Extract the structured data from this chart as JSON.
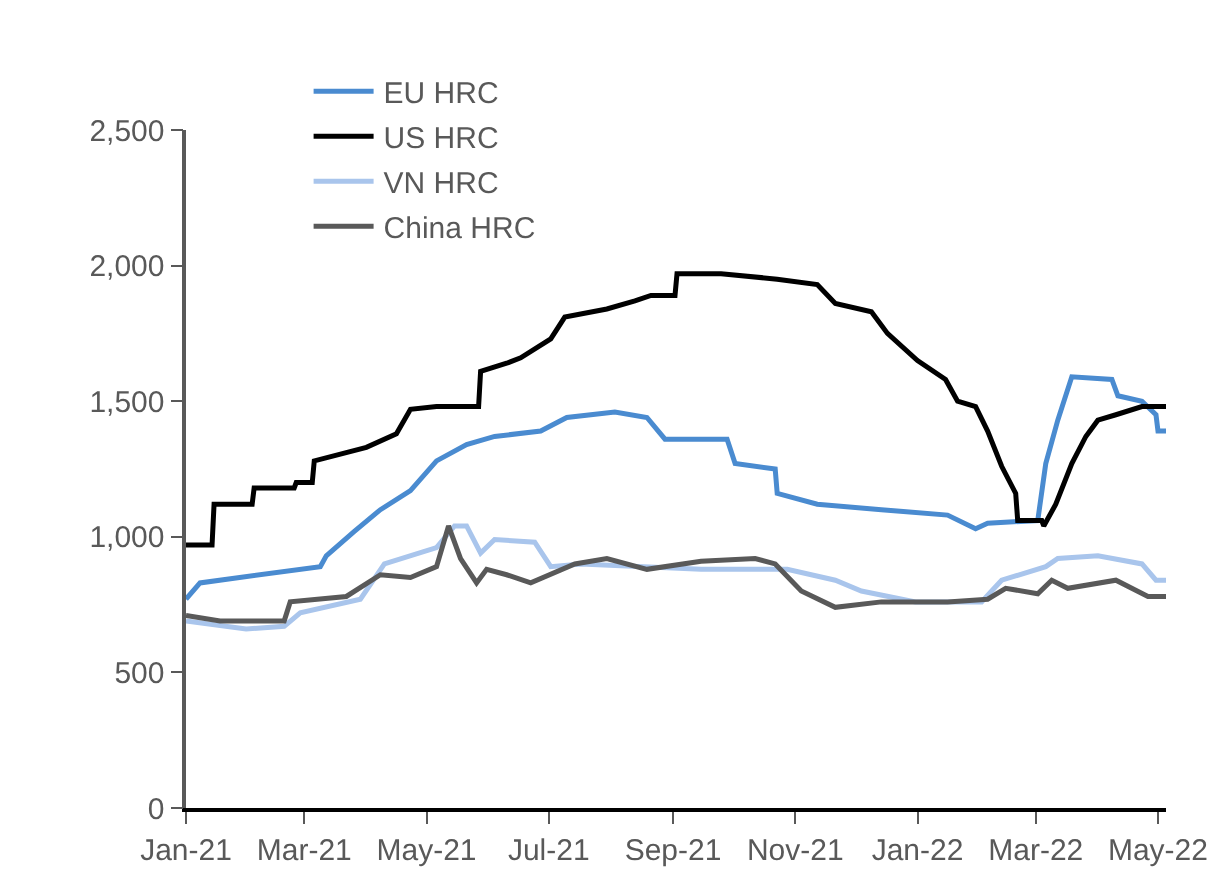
{
  "chart_data": {
    "type": "line",
    "legend": "top",
    "grid": false,
    "xlim": [
      "2021-01-01",
      "2022-05-05"
    ],
    "xticks": [
      {
        "value": "2021-01-01",
        "label": "Jan-21"
      },
      {
        "value": "2021-03-01",
        "label": "Mar-21"
      },
      {
        "value": "2021-05-01",
        "label": "May-21"
      },
      {
        "value": "2021-07-01",
        "label": "Jul-21"
      },
      {
        "value": "2021-09-01",
        "label": "Sep-21"
      },
      {
        "value": "2021-11-01",
        "label": "Nov-21"
      },
      {
        "value": "2022-01-01",
        "label": "Jan-22"
      },
      {
        "value": "2022-03-01",
        "label": "Mar-22"
      },
      {
        "value": "2022-05-01",
        "label": "May-22"
      }
    ],
    "ylim": [
      0,
      2500
    ],
    "yticks": [
      0,
      500,
      {
        "value": 1000,
        "label": "1,000"
      },
      {
        "value": 1500,
        "label": "1,500"
      },
      {
        "value": 2000,
        "label": "2,000"
      },
      {
        "value": 2500,
        "label": "2,500"
      }
    ],
    "series": [
      {
        "name": "EU HRC",
        "color": "#4a8bd0",
        "x": [
          "2021-01-01",
          "2021-01-08",
          "2021-03-09",
          "2021-03-12",
          "2021-03-26",
          "2021-04-08",
          "2021-04-23",
          "2021-05-06",
          "2021-05-21",
          "2021-06-04",
          "2021-06-27",
          "2021-07-10",
          "2021-08-03",
          "2021-08-19",
          "2021-08-28",
          "2021-09-28",
          "2021-10-02",
          "2021-10-22",
          "2021-10-23",
          "2021-11-12",
          "2021-12-14",
          "2022-01-16",
          "2022-01-30",
          "2022-02-05",
          "2022-03-02",
          "2022-03-06",
          "2022-03-12",
          "2022-03-19",
          "2022-04-08",
          "2022-04-11",
          "2022-04-23",
          "2022-04-30",
          "2022-05-01",
          "2022-05-05"
        ],
        "values": [
          770,
          830,
          890,
          930,
          1020,
          1100,
          1170,
          1280,
          1340,
          1370,
          1390,
          1440,
          1460,
          1440,
          1360,
          1360,
          1270,
          1250,
          1160,
          1120,
          1100,
          1080,
          1030,
          1050,
          1060,
          1270,
          1430,
          1590,
          1580,
          1520,
          1500,
          1450,
          1390,
          1390
        ]
      },
      {
        "name": "US HRC",
        "color": "#000000",
        "x": [
          "2021-01-01",
          "2021-01-14",
          "2021-01-15",
          "2021-02-03",
          "2021-02-04",
          "2021-02-24",
          "2021-02-25",
          "2021-03-05",
          "2021-03-06",
          "2021-04-01",
          "2021-04-16",
          "2021-04-23",
          "2021-05-06",
          "2021-05-27",
          "2021-05-28",
          "2021-06-10",
          "2021-06-17",
          "2021-07-02",
          "2021-07-09",
          "2021-07-30",
          "2021-08-13",
          "2021-08-21",
          "2021-09-02",
          "2021-09-03",
          "2021-09-25",
          "2021-10-23",
          "2021-11-12",
          "2021-11-21",
          "2021-12-09",
          "2021-12-17",
          "2022-01-01",
          "2022-01-15",
          "2022-01-21",
          "2022-01-30",
          "2022-02-05",
          "2022-02-12",
          "2022-02-19",
          "2022-02-20",
          "2022-03-04",
          "2022-03-05",
          "2022-03-11",
          "2022-03-19",
          "2022-03-26",
          "2022-04-01",
          "2022-04-10",
          "2022-04-23",
          "2022-05-05"
        ],
        "values": [
          970,
          970,
          1120,
          1120,
          1180,
          1180,
          1200,
          1200,
          1280,
          1330,
          1380,
          1470,
          1480,
          1480,
          1610,
          1640,
          1660,
          1730,
          1810,
          1840,
          1870,
          1890,
          1890,
          1970,
          1970,
          1950,
          1930,
          1860,
          1830,
          1750,
          1650,
          1580,
          1500,
          1480,
          1390,
          1260,
          1160,
          1060,
          1060,
          1040,
          1120,
          1270,
          1370,
          1430,
          1450,
          1480,
          1480
        ]
      },
      {
        "name": "VN HRC",
        "color": "#a9c5ec",
        "x": [
          "2021-01-01",
          "2021-01-31",
          "2021-02-19",
          "2021-02-27",
          "2021-03-29",
          "2021-04-10",
          "2021-05-06",
          "2021-05-15",
          "2021-05-21",
          "2021-05-28",
          "2021-06-04",
          "2021-06-24",
          "2021-07-02",
          "2021-07-17",
          "2021-09-15",
          "2021-10-28",
          "2021-11-21",
          "2021-12-04",
          "2021-12-31",
          "2022-02-02",
          "2022-02-07",
          "2022-02-12",
          "2022-03-06",
          "2022-03-12",
          "2022-04-01",
          "2022-04-23",
          "2022-04-30",
          "2022-05-05"
        ],
        "values": [
          690,
          660,
          670,
          720,
          770,
          900,
          960,
          1040,
          1040,
          940,
          990,
          980,
          890,
          900,
          880,
          880,
          840,
          800,
          760,
          760,
          800,
          840,
          890,
          920,
          930,
          900,
          840,
          840
        ]
      },
      {
        "name": "China HRC",
        "color": "#595959",
        "x": [
          "2021-01-01",
          "2021-01-18",
          "2021-02-19",
          "2021-02-22",
          "2021-03-22",
          "2021-04-08",
          "2021-04-23",
          "2021-05-06",
          "2021-05-12",
          "2021-05-18",
          "2021-05-26",
          "2021-05-31",
          "2021-06-10",
          "2021-06-22",
          "2021-07-14",
          "2021-07-30",
          "2021-08-19",
          "2021-09-15",
          "2021-10-12",
          "2021-10-22",
          "2021-11-04",
          "2021-11-21",
          "2021-12-14",
          "2022-01-16",
          "2022-02-05",
          "2022-02-14",
          "2022-03-02",
          "2022-03-09",
          "2022-03-17",
          "2022-04-10",
          "2022-04-26",
          "2022-05-05"
        ],
        "values": [
          710,
          690,
          690,
          760,
          780,
          860,
          850,
          890,
          1040,
          920,
          830,
          880,
          860,
          830,
          900,
          920,
          880,
          910,
          920,
          900,
          800,
          740,
          760,
          760,
          770,
          810,
          790,
          840,
          810,
          840,
          780,
          780
        ]
      }
    ]
  }
}
